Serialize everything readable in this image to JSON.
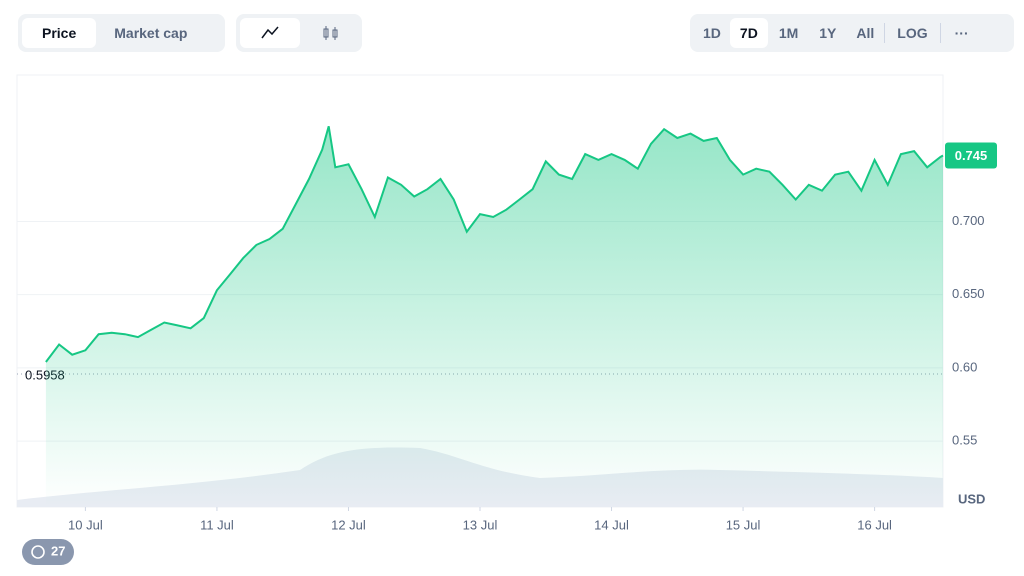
{
  "ui": {
    "view_tabs": [
      "Price",
      "Market cap"
    ],
    "range_tabs": [
      "1D",
      "7D",
      "1M",
      "1Y",
      "All",
      "LOG"
    ],
    "comments": 27
  },
  "chart_data": {
    "type": "line",
    "color": "#16c784",
    "x": [
      9.7,
      9.8,
      9.9,
      10.0,
      10.1,
      10.2,
      10.3,
      10.4,
      10.5,
      10.6,
      10.7,
      10.8,
      10.9,
      11.0,
      11.1,
      11.2,
      11.3,
      11.4,
      11.5,
      11.6,
      11.7,
      11.8,
      11.85,
      11.9,
      12.0,
      12.1,
      12.2,
      12.3,
      12.4,
      12.5,
      12.6,
      12.7,
      12.8,
      12.9,
      13.0,
      13.1,
      13.2,
      13.3,
      13.4,
      13.5,
      13.6,
      13.7,
      13.8,
      13.9,
      14.0,
      14.1,
      14.2,
      14.3,
      14.4,
      14.5,
      14.6,
      14.7,
      14.8,
      14.9,
      15.0,
      15.1,
      15.2,
      15.3,
      15.4,
      15.5,
      15.6,
      15.7,
      15.8,
      15.9,
      16.0,
      16.1,
      16.2,
      16.3,
      16.4,
      16.5,
      16.52
    ],
    "values": [
      0.604,
      0.616,
      0.609,
      0.612,
      0.623,
      0.624,
      0.623,
      0.621,
      0.626,
      0.631,
      0.629,
      0.627,
      0.634,
      0.653,
      0.664,
      0.675,
      0.684,
      0.688,
      0.695,
      0.712,
      0.729,
      0.749,
      0.765,
      0.737,
      0.739,
      0.722,
      0.703,
      0.73,
      0.725,
      0.717,
      0.722,
      0.729,
      0.715,
      0.693,
      0.705,
      0.703,
      0.708,
      0.715,
      0.722,
      0.741,
      0.732,
      0.729,
      0.746,
      0.742,
      0.746,
      0.742,
      0.736,
      0.753,
      0.763,
      0.757,
      0.76,
      0.755,
      0.757,
      0.742,
      0.732,
      0.736,
      0.734,
      0.725,
      0.715,
      0.725,
      0.721,
      0.732,
      0.734,
      0.721,
      0.742,
      0.725,
      0.746,
      0.748,
      0.737,
      0.744,
      0.745
    ],
    "xlim": [
      9.48,
      16.52
    ],
    "xticks": [
      {
        "value": 10,
        "label": "10 Jul"
      },
      {
        "value": 11,
        "label": "11 Jul"
      },
      {
        "value": 12,
        "label": "12 Jul"
      },
      {
        "value": 13,
        "label": "13 Jul"
      },
      {
        "value": 14,
        "label": "14 Jul"
      },
      {
        "value": 15,
        "label": "15 Jul"
      },
      {
        "value": 16,
        "label": "16 Jul"
      }
    ],
    "ylim": [
      0.505,
      0.8
    ],
    "yticks": [
      0.55,
      {
        "value": 0.6,
        "label": "0.60"
      },
      {
        "value": 0.65,
        "label": "0.650"
      },
      {
        "value": 0.7,
        "label": "0.700"
      }
    ],
    "current_price": 0.745,
    "start_price": 0.5958,
    "y_unit": "USD",
    "grid": true
  }
}
